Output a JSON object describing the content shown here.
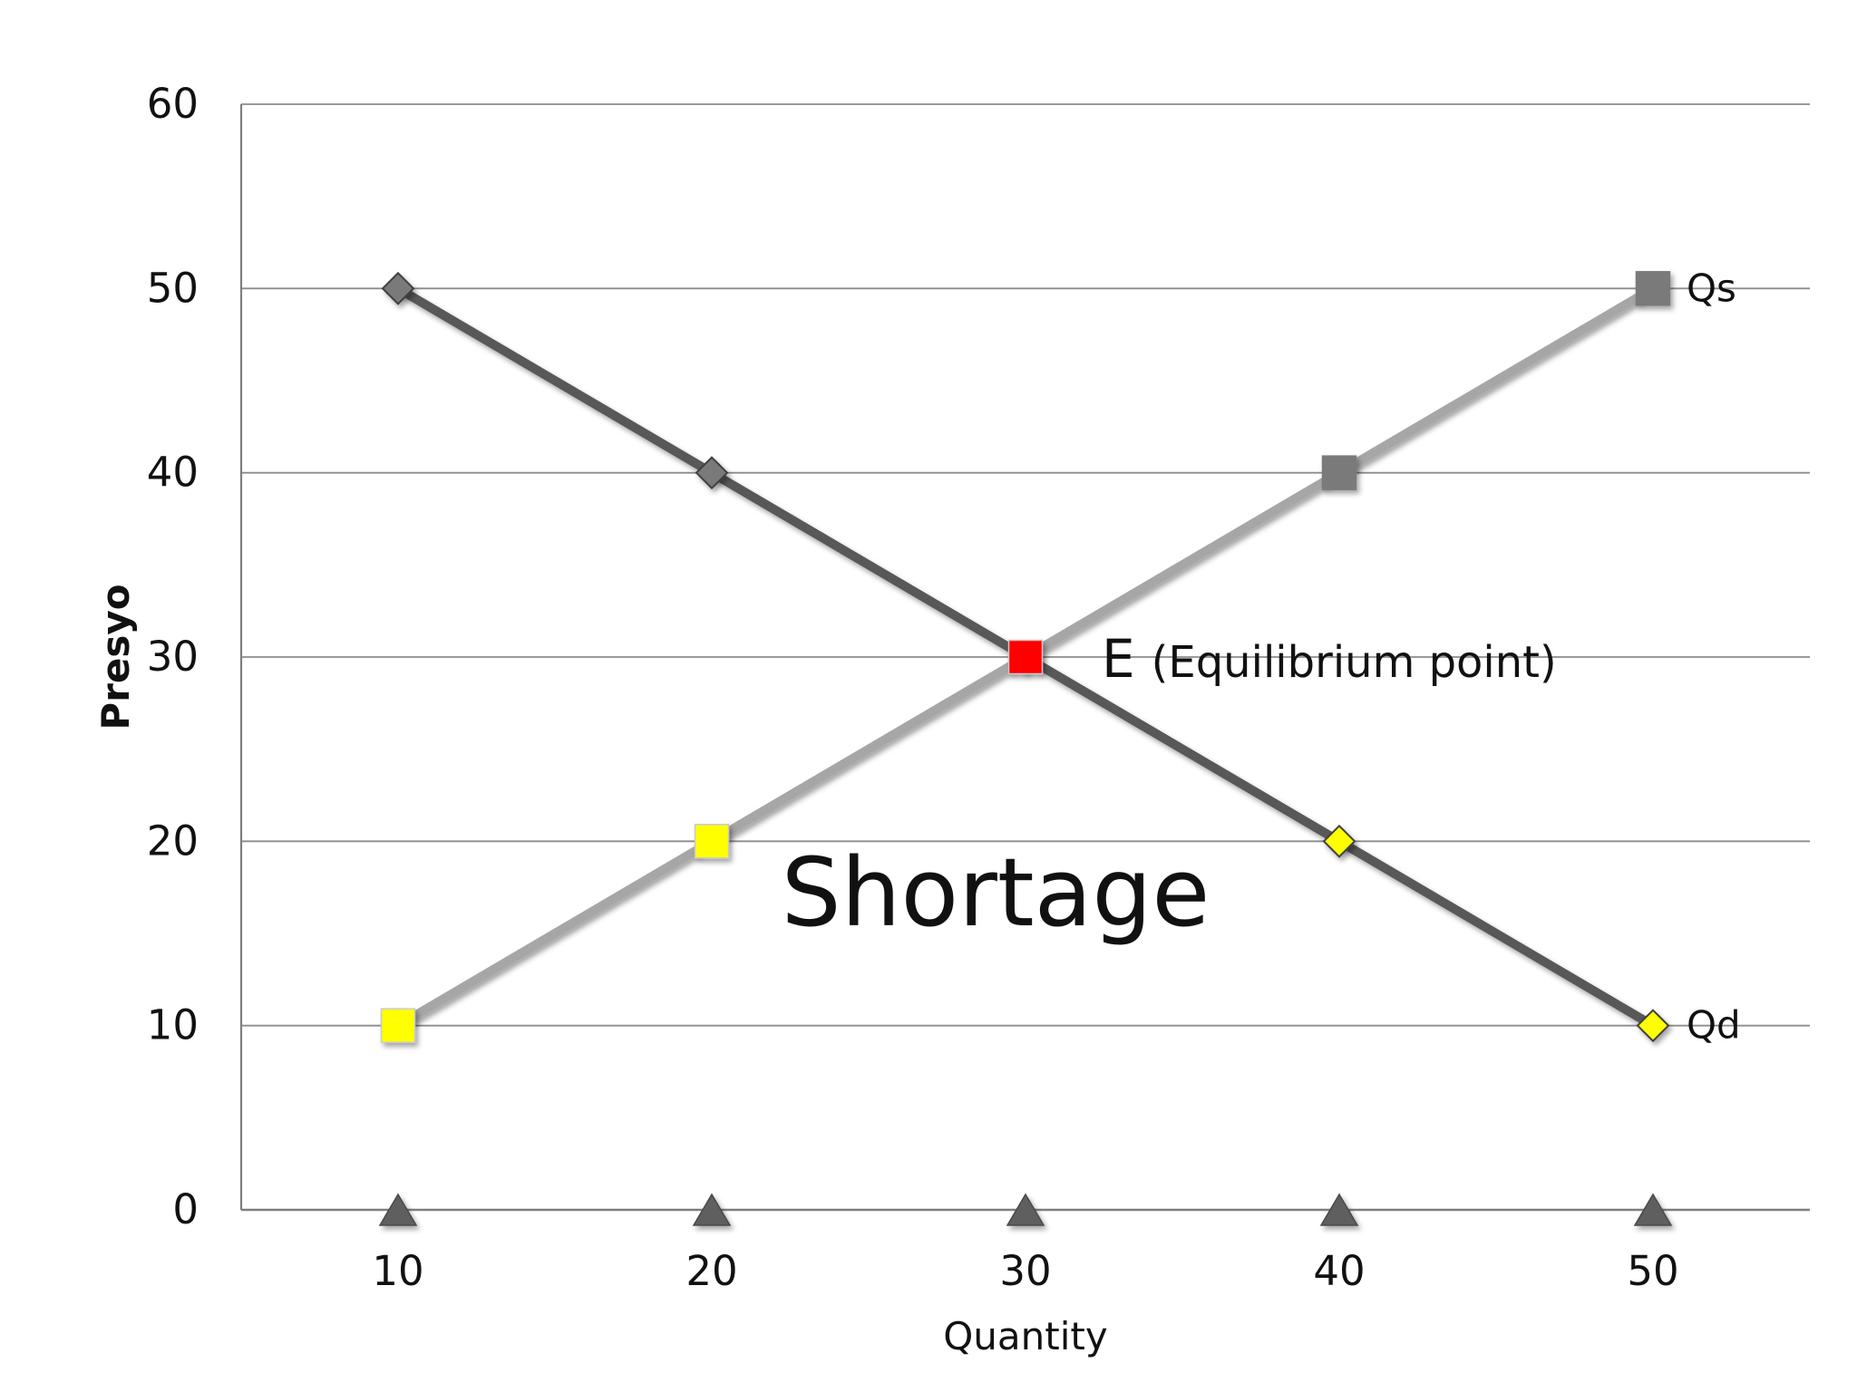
{
  "chart_data": {
    "type": "line",
    "xlabel": "Quantity",
    "ylabel": "Presyo",
    "categories": [
      10,
      20,
      30,
      40,
      50
    ],
    "ylim": [
      0,
      60
    ],
    "yticks": [
      0,
      10,
      20,
      30,
      40,
      50,
      60
    ],
    "grid": "horizontal",
    "series": [
      {
        "key": "qd",
        "name": "Qd",
        "values": [
          50,
          40,
          30,
          20,
          10
        ],
        "line_color": "#595959",
        "marker": "diamond",
        "marker_colors": [
          "#7a7a7a",
          "#7a7a7a",
          "#ff0000",
          "#ffff00",
          "#ffff00"
        ]
      },
      {
        "key": "qs",
        "name": "Qs",
        "values": [
          10,
          20,
          30,
          40,
          50
        ],
        "line_color": "#a6a6a6",
        "marker": "square",
        "marker_colors": [
          "#ffff00",
          "#ffff00",
          "#ff0000",
          "#7a7a7a",
          "#7a7a7a"
        ]
      },
      {
        "key": "base",
        "values": [
          0,
          0,
          0,
          0,
          0
        ],
        "line_color": "#666666",
        "marker": "triangle",
        "marker_colors": [
          "#5e5e5e",
          "#5e5e5e",
          "#5e5e5e",
          "#5e5e5e",
          "#5e5e5e"
        ]
      }
    ],
    "annotations": {
      "equilibrium_prefix": "E",
      "equilibrium_text": "(Equilibrium point)",
      "region_text": "Shortage"
    }
  },
  "colors": {
    "grid": "#8c8c8c",
    "axis": "#7f7f7f",
    "equilibrium": "#ff0000",
    "yellow": "#ffff00"
  }
}
